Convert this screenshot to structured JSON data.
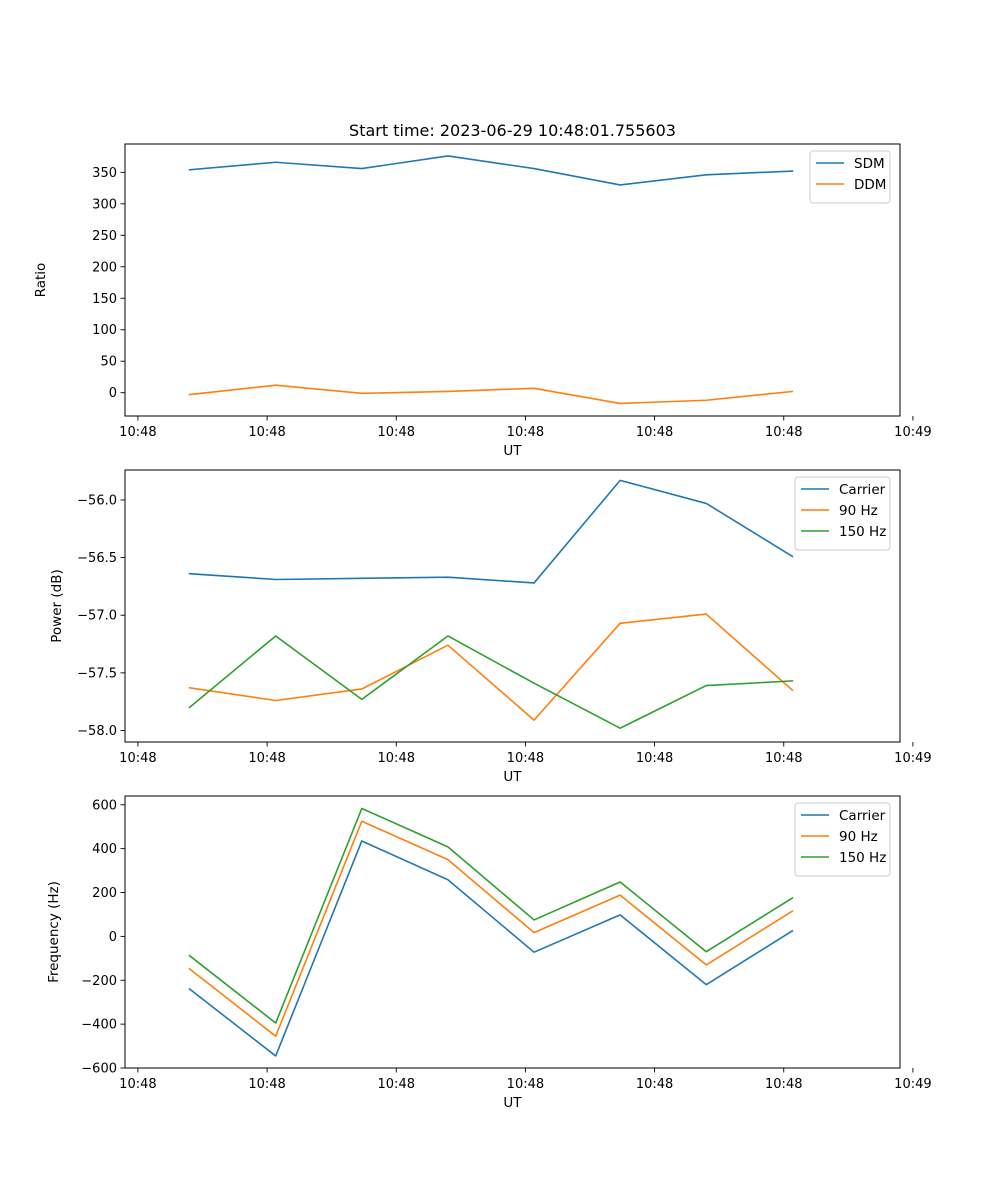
{
  "figure": {
    "title": "Start time: 2023-06-29 10:48:01.755603"
  },
  "chart_data": [
    {
      "type": "line",
      "title": "Start time: 2023-06-29 10:48:01.755603",
      "xlabel": "UT",
      "ylabel": "Ratio",
      "x": [
        1,
        2,
        3,
        4,
        5,
        6,
        7,
        8
      ],
      "xlim": [
        0.25,
        9.25
      ],
      "x_ticks": [
        0.4,
        1.9,
        3.4,
        4.9,
        6.4,
        7.9,
        9.4
      ],
      "x_tick_labels": [
        "10:48",
        "10:48",
        "10:48",
        "10:48",
        "10:48",
        "10:48",
        "10:49"
      ],
      "ylim": [
        -37,
        395
      ],
      "y_ticks": [
        0,
        50,
        100,
        150,
        200,
        250,
        300,
        350
      ],
      "y_tick_labels": [
        "0",
        "50",
        "100",
        "150",
        "200",
        "250",
        "300",
        "350"
      ],
      "legend": "top-right",
      "series": [
        {
          "name": "SDM",
          "color": "#1f77b4",
          "values": [
            354,
            366,
            356,
            376,
            356,
            330,
            346,
            352
          ]
        },
        {
          "name": "DDM",
          "color": "#ff7f0e",
          "values": [
            -3,
            12,
            -1,
            2,
            7,
            -17,
            -12,
            2
          ]
        }
      ]
    },
    {
      "type": "line",
      "title": "",
      "xlabel": "UT",
      "ylabel": "Power (dB)",
      "x": [
        1,
        2,
        3,
        4,
        5,
        6,
        7,
        8
      ],
      "xlim": [
        0.25,
        9.25
      ],
      "x_ticks": [
        0.4,
        1.9,
        3.4,
        4.9,
        6.4,
        7.9,
        9.4
      ],
      "x_tick_labels": [
        "10:48",
        "10:48",
        "10:48",
        "10:48",
        "10:48",
        "10:48",
        "10:49"
      ],
      "ylim": [
        -58.1,
        -55.74
      ],
      "y_ticks": [
        -58.0,
        -57.5,
        -57.0,
        -56.5,
        -56.0
      ],
      "y_tick_labels": [
        "−58.0",
        "−57.5",
        "−57.0",
        "−56.5",
        "−56.0"
      ],
      "legend": "top-right",
      "series": [
        {
          "name": "Carrier",
          "color": "#1f77b4",
          "values": [
            -56.64,
            -56.69,
            -56.68,
            -56.67,
            -56.72,
            -55.83,
            -56.03,
            -56.49
          ]
        },
        {
          "name": "90 Hz",
          "color": "#ff7f0e",
          "values": [
            -57.63,
            -57.74,
            -57.64,
            -57.26,
            -57.91,
            -57.07,
            -56.99,
            -57.65
          ]
        },
        {
          "name": "150 Hz",
          "color": "#2ca02c",
          "values": [
            -57.8,
            -57.18,
            -57.73,
            -57.18,
            -57.59,
            -57.98,
            -57.61,
            -57.57
          ]
        }
      ]
    },
    {
      "type": "line",
      "title": "",
      "xlabel": "UT",
      "ylabel": "Frequency (Hz)",
      "x": [
        1,
        2,
        3,
        4,
        5,
        6,
        7,
        8
      ],
      "xlim": [
        0.25,
        9.25
      ],
      "x_ticks": [
        0.4,
        1.9,
        3.4,
        4.9,
        6.4,
        7.9,
        9.4
      ],
      "x_tick_labels": [
        "10:48",
        "10:48",
        "10:48",
        "10:48",
        "10:48",
        "10:48",
        "10:49"
      ],
      "ylim": [
        -600,
        640
      ],
      "y_ticks": [
        -600,
        -400,
        -200,
        0,
        200,
        400,
        600
      ],
      "y_tick_labels": [
        "−600",
        "−400",
        "−200",
        "0",
        "200",
        "400",
        "600"
      ],
      "legend": "top-right",
      "series": [
        {
          "name": "Carrier",
          "color": "#1f77b4",
          "values": [
            -240,
            -545,
            435,
            258,
            -72,
            98,
            -220,
            25
          ]
        },
        {
          "name": "90 Hz",
          "color": "#ff7f0e",
          "values": [
            -148,
            -455,
            525,
            350,
            17,
            188,
            -130,
            115
          ]
        },
        {
          "name": "150 Hz",
          "color": "#2ca02c",
          "values": [
            -88,
            -395,
            583,
            408,
            75,
            248,
            -70,
            175
          ]
        }
      ]
    }
  ]
}
